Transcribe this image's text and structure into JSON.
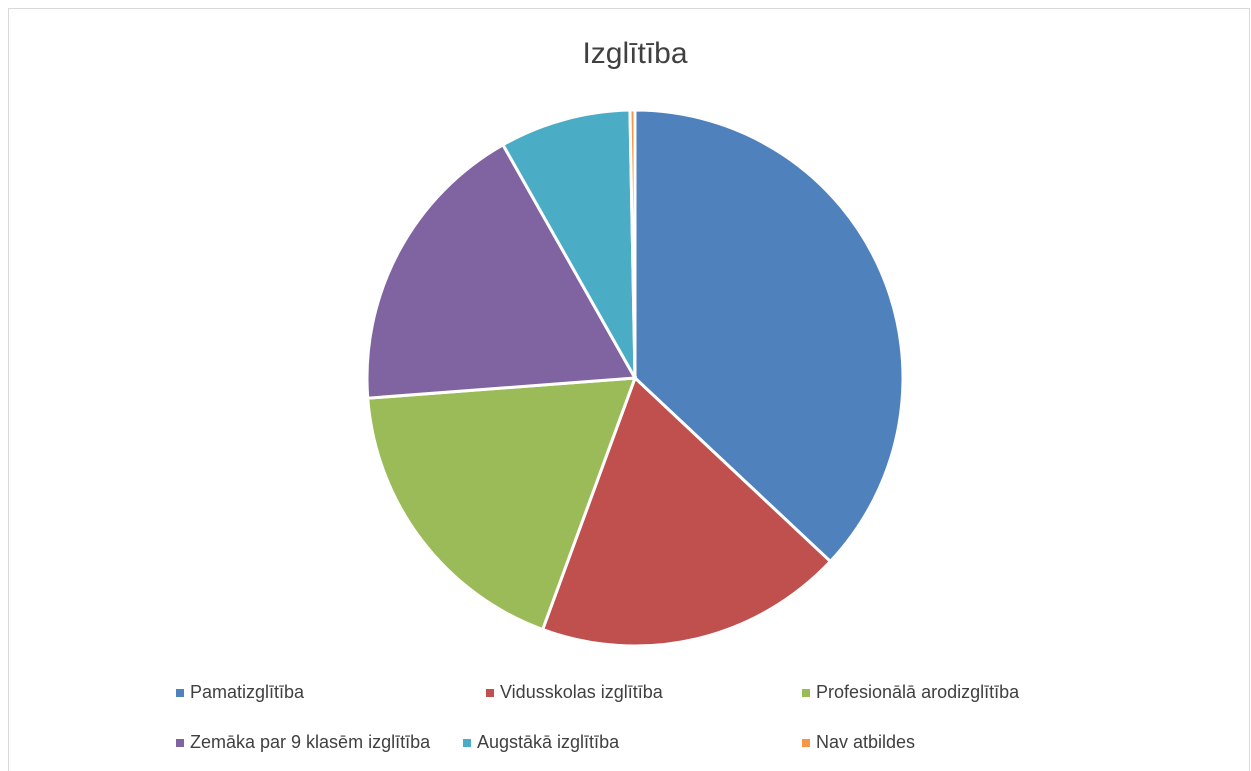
{
  "chart_data": {
    "type": "pie",
    "title": "Izglītība",
    "categories": [
      "Pamatizglītība",
      "Vidusskolas izglītība",
      "Profesionālā arodizglītība",
      "Zemāka par 9 klasēm izglītība",
      "Augstākā izglītība",
      "Nav atbildes"
    ],
    "values": [
      37,
      18.6,
      18.2,
      18,
      7.9,
      0.3
    ],
    "colors": [
      "#4f81bd",
      "#c0504d",
      "#9bbb59",
      "#8064a2",
      "#4bacc6",
      "#f79646"
    ],
    "legend": "bottom"
  }
}
